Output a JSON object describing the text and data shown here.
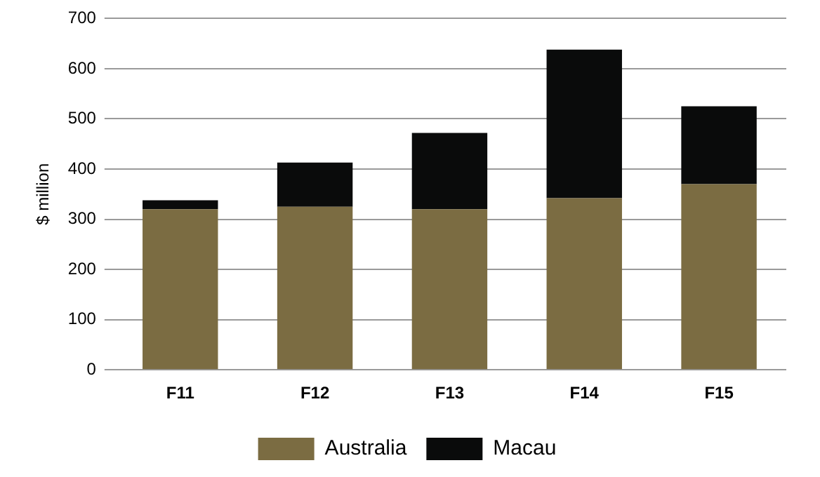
{
  "chart_data": {
    "type": "bar",
    "stacked": true,
    "ylabel": "$ million",
    "categories": [
      "F11",
      "F12",
      "F13",
      "F14",
      "F15"
    ],
    "series": [
      {
        "name": "Australia",
        "color": "#7b6c42",
        "values": [
          320,
          325,
          320,
          342,
          370
        ]
      },
      {
        "name": "Macau",
        "color": "#0a0b0b",
        "values": [
          18,
          88,
          152,
          296,
          155
        ]
      }
    ],
    "ylim": [
      0,
      700
    ],
    "yticks": [
      0,
      100,
      200,
      300,
      400,
      500,
      600,
      700
    ],
    "grid": "y",
    "legend": "bottom"
  }
}
